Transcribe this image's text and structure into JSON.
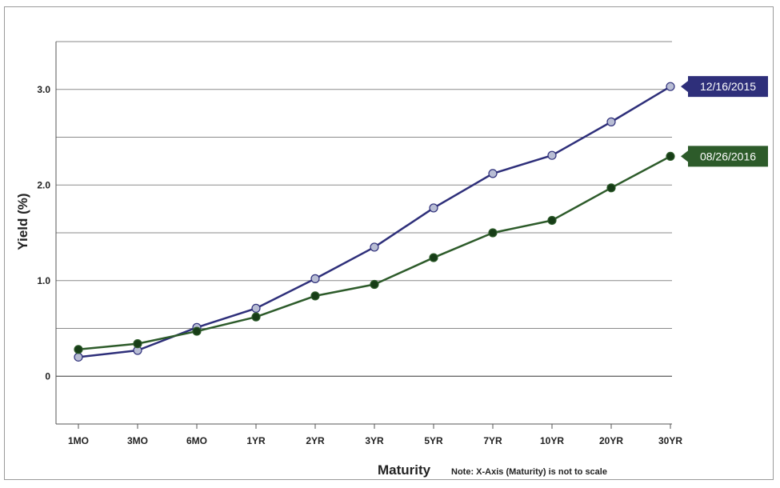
{
  "chart_data": {
    "type": "line",
    "title": "",
    "xlabel": "Maturity",
    "ylabel": "Yield (%)",
    "note": "Note: X-Axis (Maturity) is not to scale",
    "categories": [
      "1MO",
      "3MO",
      "6MO",
      "1YR",
      "2YR",
      "3YR",
      "5YR",
      "7YR",
      "10YR",
      "20YR",
      "30YR"
    ],
    "yticks": [
      0,
      1.0,
      2.0,
      3.0
    ],
    "ytick_labels": [
      "0",
      "1.0",
      "2.0",
      "3.0"
    ],
    "ylim": [
      -0.5,
      3.5
    ],
    "grid": true,
    "series": [
      {
        "name": "12/16/2015",
        "color": "#2e2f7a",
        "marker_color": "#b8bdd4",
        "values": [
          0.2,
          0.27,
          0.51,
          0.71,
          1.02,
          1.35,
          1.76,
          2.12,
          2.31,
          2.66,
          3.03
        ]
      },
      {
        "name": "08/26/2016",
        "color": "#2d5b2a",
        "marker_color": "#173d17",
        "values": [
          0.28,
          0.34,
          0.47,
          0.62,
          0.84,
          0.96,
          1.24,
          1.5,
          1.63,
          1.97,
          2.3
        ]
      }
    ]
  }
}
